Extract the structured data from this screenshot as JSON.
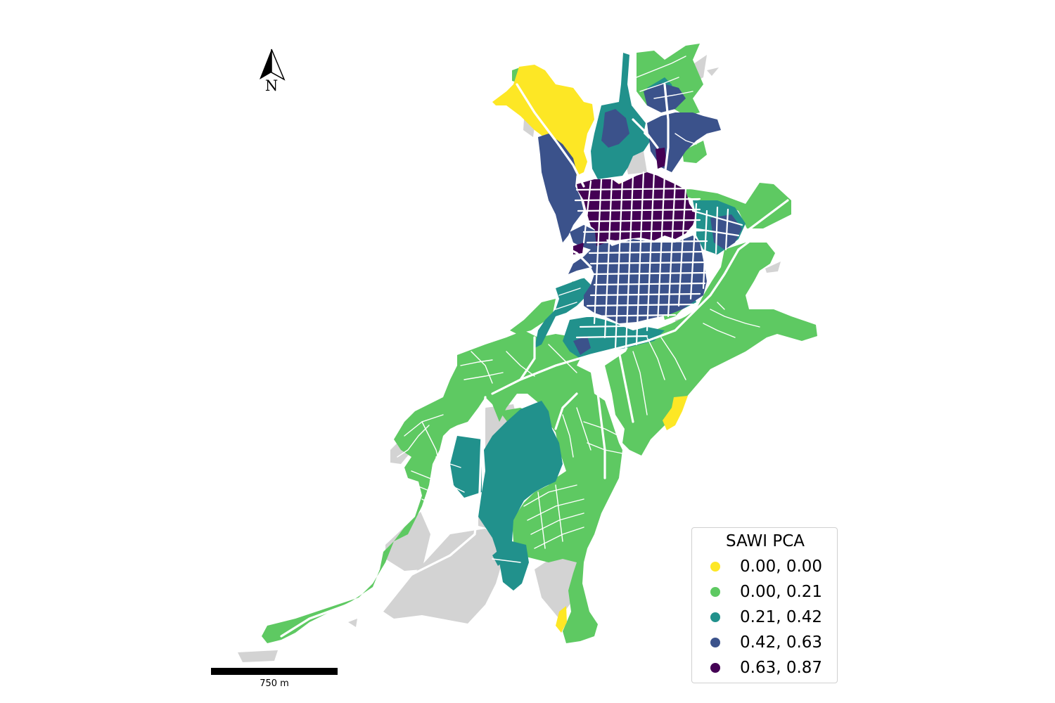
{
  "map": {
    "north_arrow_label": "N",
    "scale_label": "750 m"
  },
  "legend": {
    "title": "SAWI PCA",
    "items": [
      {
        "label": "0.00, 0.00",
        "color": "#fde725"
      },
      {
        "label": "0.00, 0.21",
        "color": "#5ec962"
      },
      {
        "label": "0.21, 0.42",
        "color": "#21918c"
      },
      {
        "label": "0.42, 0.63",
        "color": "#3b528b"
      },
      {
        "label": "0.63, 0.87",
        "color": "#440154"
      }
    ]
  },
  "colors": {
    "no_data": "#d3d3d3",
    "road": "#ffffff"
  }
}
